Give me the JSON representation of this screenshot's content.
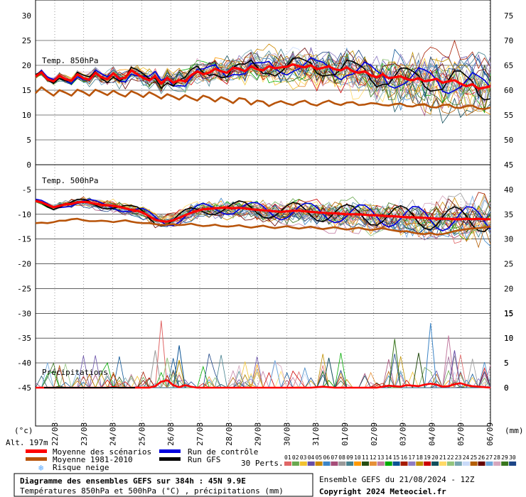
{
  "chart_data": {
    "type": "line",
    "panels": {
      "t850": {
        "label": "Temp. 850hPa",
        "left_ticks": [
          "30",
          "25",
          "20",
          "15",
          "10",
          "5",
          "0"
        ],
        "right_ticks": [
          "75",
          "70",
          "65",
          "60",
          "55",
          "50",
          "45"
        ],
        "ylim": [
          0,
          30
        ],
        "mean": [
          17.8,
          18.6,
          17.2,
          16.8,
          17.9,
          17.2,
          16.9,
          18.2,
          17.4,
          17.1,
          18.5,
          17.6,
          17.2,
          18.4,
          17.3,
          17.5,
          19.0,
          18.2,
          17.5,
          17.0,
          17.8,
          16.3,
          17.5,
          16.5,
          17.0,
          16.8,
          18.0,
          18.8,
          18.2,
          18.5,
          19.3,
          18.8,
          18.5,
          19.5,
          19.3,
          18.8,
          19.8,
          19.2,
          19.0,
          19.8,
          19.4,
          19.6,
          19.7,
          20.2,
          19.8,
          19.6,
          20.0,
          19.2,
          19.5,
          19.8,
          19.2,
          19.0,
          19.6,
          18.8,
          18.5,
          18.8,
          18.0,
          17.6,
          18.2,
          17.4,
          17.6,
          17.8,
          17.2,
          17.0,
          17.4,
          16.8,
          17.0,
          17.3,
          16.5,
          16.8,
          17.0,
          16.3,
          15.8,
          16.2,
          15.3,
          15.5,
          15.8
        ],
        "climatology": [
          14.4,
          15.6,
          14.7,
          13.9,
          15.0,
          14.5,
          13.9,
          15.1,
          14.6,
          13.9,
          15.1,
          14.6,
          14.0,
          14.9,
          14.2,
          13.7,
          14.8,
          14.3,
          13.6,
          14.6,
          14.0,
          13.3,
          14.2,
          13.7,
          13.1,
          14.0,
          13.4,
          12.9,
          13.9,
          13.5,
          12.7,
          13.6,
          13.1,
          12.4,
          13.4,
          13.2,
          12.1,
          12.9,
          12.7,
          11.8,
          12.4,
          12.8,
          12.3,
          12.0,
          12.6,
          12.9,
          12.2,
          11.9,
          12.5,
          12.9,
          12.3,
          12.0,
          12.5,
          12.6,
          12.0,
          12.1,
          12.4,
          12.3,
          12.0,
          11.9,
          12.2,
          12.3,
          11.8,
          11.7,
          12.1,
          12.2,
          11.6,
          11.5,
          12.0,
          12.1,
          11.5,
          11.4,
          11.8,
          11.9,
          11.3,
          11.2,
          11.5
        ]
      },
      "t500": {
        "label": "Temp. 500hPa",
        "left_ticks": [
          "-5",
          "-10",
          "-15",
          "-20",
          "-25",
          "-30",
          "-35",
          "-40",
          "-45"
        ],
        "right_ticks": [
          "40",
          "35",
          "30",
          "25",
          "20",
          "15",
          "10",
          "5",
          "0"
        ],
        "ylim": [
          -50,
          0
        ],
        "mean": [
          -7.3,
          -7.6,
          -8.1,
          -8.6,
          -8.3,
          -8.0,
          -7.9,
          -7.6,
          -7.5,
          -7.6,
          -7.9,
          -8.1,
          -8.2,
          -8.3,
          -8.5,
          -8.8,
          -9.1,
          -9.3,
          -9.7,
          -10.4,
          -11.1,
          -11.4,
          -11.5,
          -11.2,
          -10.7,
          -10.2,
          -9.7,
          -9.3,
          -9.0,
          -8.9,
          -8.8,
          -8.7,
          -8.7,
          -8.8,
          -8.7,
          -8.8,
          -9.0,
          -9.1,
          -9.2,
          -9.3,
          -9.4,
          -9.5,
          -9.4,
          -9.3,
          -9.3,
          -9.4,
          -9.5,
          -9.6,
          -9.7,
          -9.8,
          -9.8,
          -9.9,
          -10.0,
          -10.0,
          -10.0,
          -10.1,
          -10.2,
          -10.2,
          -10.3,
          -10.4,
          -10.4,
          -10.5,
          -10.6,
          -10.6,
          -10.7,
          -10.7,
          -10.8,
          -10.9,
          -10.9,
          -10.9,
          -11.0,
          -11.0,
          -10.9,
          -11.0,
          -10.9,
          -11.0,
          -11.0
        ],
        "climatology": [
          -11.8,
          -11.7,
          -11.8,
          -11.6,
          -11.3,
          -11.3,
          -11.0,
          -10.9,
          -11.2,
          -11.4,
          -11.4,
          -11.3,
          -11.4,
          -11.6,
          -11.4,
          -11.2,
          -11.5,
          -11.7,
          -11.8,
          -11.8,
          -12.0,
          -12.2,
          -12.1,
          -12.0,
          -12.2,
          -12.1,
          -11.9,
          -12.2,
          -12.4,
          -12.3,
          -12.1,
          -12.4,
          -12.5,
          -12.4,
          -12.2,
          -12.5,
          -12.7,
          -12.5,
          -12.3,
          -12.6,
          -12.8,
          -12.6,
          -12.4,
          -12.7,
          -12.9,
          -12.7,
          -12.5,
          -12.8,
          -13.0,
          -12.8,
          -12.6,
          -12.9,
          -13.1,
          -12.9,
          -12.7,
          -13.0,
          -13.2,
          -13.0,
          -12.8,
          -13.1,
          -13.3,
          -13.5,
          -13.4,
          -13.7,
          -13.9,
          -14.0,
          -13.8,
          -14.1,
          -14.0,
          -13.7,
          -13.4,
          -13.2,
          -13.0,
          -12.9,
          -12.8,
          -12.6,
          -12.5
        ]
      },
      "precip": {
        "label": "Précipitations",
        "right_ticks": [
          "15",
          "10",
          "5",
          "0"
        ],
        "ylim": [
          0,
          15
        ],
        "mean": [
          0,
          0,
          0,
          0,
          0,
          0,
          0,
          0,
          0,
          0,
          0,
          0,
          0,
          0.1,
          0,
          0,
          0,
          0,
          0,
          0,
          0.3,
          1.2,
          1.5,
          0.5,
          0.1,
          0.5,
          0.2,
          0,
          0,
          0,
          0,
          0,
          0,
          0,
          0,
          0,
          0,
          0,
          0,
          0,
          0,
          0,
          0,
          0,
          0,
          0,
          0,
          0.1,
          0.2,
          0.1,
          0,
          0,
          0,
          0,
          0,
          0,
          0,
          0,
          0.2,
          0.4,
          0.3,
          0.2,
          0.5,
          0.4,
          0.3,
          0.6,
          0.8,
          0.6,
          0.2,
          0.3,
          0.7,
          0.9,
          0.5,
          0.3,
          0.2,
          0.1,
          0
        ],
        "spikes": [
          {
            "x": 27,
            "v": 13.5
          },
          {
            "x": 26,
            "v": 7.5
          },
          {
            "x": 31,
            "v": 8.5
          },
          {
            "x": 29,
            "v": 6.0
          },
          {
            "x": 79,
            "v": 9.8
          },
          {
            "x": 87,
            "v": 13.0
          },
          {
            "x": 91,
            "v": 10.5
          },
          {
            "x": 65,
            "v": 6.0
          },
          {
            "x": 52,
            "v": 5.5
          },
          {
            "x": 92,
            "v": 7.5
          },
          {
            "x": 84,
            "v": 7.0
          }
        ]
      }
    },
    "x_dates": [
      "22/08",
      "23/08",
      "24/08",
      "25/08",
      "26/08",
      "27/08",
      "28/08",
      "29/08",
      "30/08",
      "31/08",
      "01/09",
      "02/09",
      "03/09",
      "04/09",
      "05/09",
      "06/09"
    ],
    "y_units_left": "(°c)",
    "y_units_right": "(mm)",
    "altitude": "Alt. 197m",
    "series_colors": {
      "mean": "#ff0000",
      "climatology": "#b8540a",
      "control": "#0000dd",
      "gfs": "#000000",
      "snow": "#55a8ff"
    }
  },
  "legend": {
    "mean": "Moyenne des scénarios",
    "climatology": "Moyenne 1981-2010",
    "snow": "Risque neige",
    "control": "Run de contrôle",
    "gfs": "Run GFS",
    "perts_label": "30 Perts.",
    "pert_numbers": [
      "01",
      "02",
      "03",
      "04",
      "05",
      "06",
      "07",
      "08",
      "09",
      "10",
      "11",
      "12",
      "13",
      "14",
      "15",
      "16",
      "17",
      "18",
      "19",
      "20",
      "21",
      "22",
      "23",
      "24",
      "25",
      "26",
      "27",
      "28",
      "29",
      "30"
    ],
    "pert_colors": [
      "#e06666",
      "#6aa84f",
      "#f1c232",
      "#674ea7",
      "#cc8800",
      "#3d85c6",
      "#a64d79",
      "#999999",
      "#45818e",
      "#ff9900",
      "#274e13",
      "#e69138",
      "#c27ba0",
      "#00aa00",
      "#0b5394",
      "#a61c00",
      "#8e7cc3",
      "#bf9000",
      "#cc0000",
      "#134f5c",
      "#ffd966",
      "#93c47d",
      "#76a5af",
      "#c9daf8",
      "#b45f06",
      "#660000",
      "#6fa8dc",
      "#d5a6bd",
      "#38761d",
      "#1c4587"
    ]
  },
  "footer": {
    "title": "Diagramme des ensembles GEFS sur 384h : 45N 9.9E",
    "subtitle": "Températures 850hPa et 500hPa (°C) , précipitations (mm)",
    "run": "Ensemble GEFS du 21/08/2024 - 12Z",
    "copyright": "Copyright 2024 Meteociel.fr"
  }
}
